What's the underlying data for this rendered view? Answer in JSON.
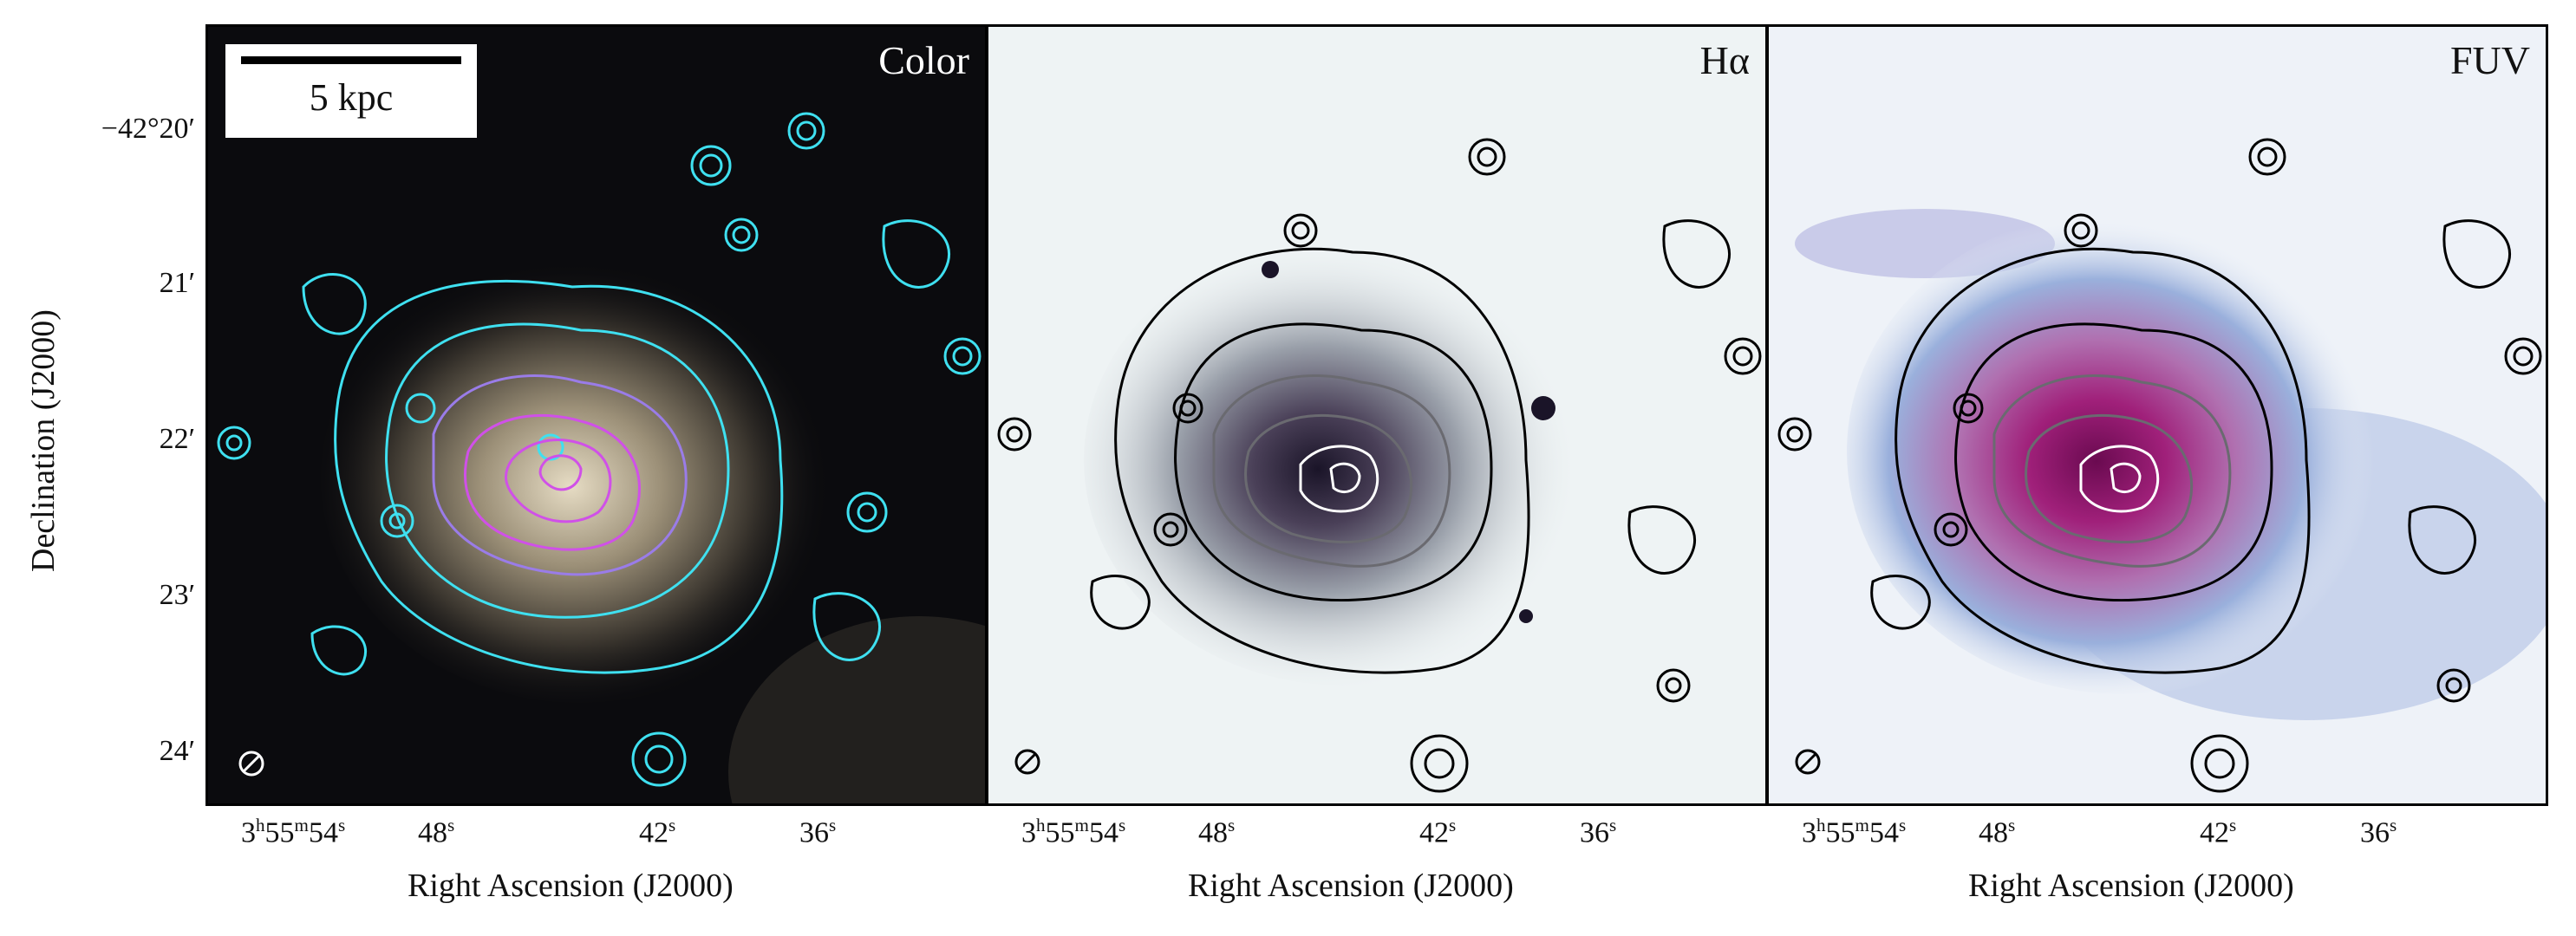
{
  "panels": [
    {
      "label": "Color",
      "colors": {
        "bg": "#0b0b0e",
        "glow": "#c9bca2",
        "contour_outer": "#3fe0f0",
        "contour_inner": "#d050e8"
      }
    },
    {
      "label": "Hα",
      "colors": {
        "bg": "#eef3f4",
        "glow": "#2a2438",
        "contour": "#000000"
      }
    },
    {
      "label": "FUV",
      "colors": {
        "bg": "#eef2f8",
        "glow": "#a0207a",
        "halo": "#8ea8d8",
        "contour": "#000000"
      }
    }
  ],
  "scale_bar": {
    "label": "5 kpc"
  },
  "yaxis": {
    "label": "Declination (J2000)",
    "ticks": [
      "−42°20′",
      "21′",
      "22′",
      "23′",
      "24′"
    ]
  },
  "xaxis": {
    "label": "Right Ascension (J2000)",
    "ticks": [
      {
        "h": "3",
        "m": "55",
        "s": "54"
      },
      {
        "s": "48"
      },
      {
        "s": "42"
      },
      {
        "s": "36"
      }
    ]
  },
  "beam_icon": "hatched-circle-icon"
}
